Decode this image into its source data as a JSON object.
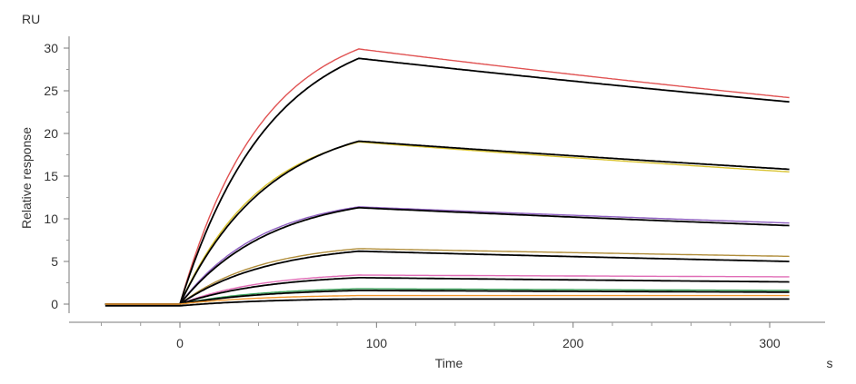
{
  "chart_data": {
    "type": "line",
    "title": "",
    "xlabel": "Time",
    "ylabel": "Relative response",
    "x_unit": "s",
    "y_unit": "RU",
    "xlim": [
      -40,
      310
    ],
    "ylim": [
      -1.2,
      31.5
    ],
    "x_ticks": [
      "0",
      "100",
      "200",
      "300"
    ],
    "y_ticks": [
      "0",
      "5",
      "10",
      "15",
      "20",
      "25",
      "30"
    ],
    "grid": false,
    "legend": "none",
    "injection_start": 0,
    "injection_end": 91,
    "series": [
      {
        "color": "#e05252",
        "role": "measured",
        "baseline": 0,
        "peak": 29.9,
        "end": 24.2,
        "x_end": 310
      },
      {
        "color": "#000000",
        "role": "fit",
        "baseline": 0,
        "peak": 28.8,
        "end": 23.7,
        "x_end": 310
      },
      {
        "color": "#d8c22e",
        "role": "measured",
        "baseline": 0,
        "peak": 19.0,
        "end": 15.5,
        "x_end": 310
      },
      {
        "color": "#000000",
        "role": "fit",
        "baseline": 0,
        "peak": 19.1,
        "end": 15.8,
        "x_end": 310
      },
      {
        "color": "#8e5fc0",
        "role": "measured",
        "baseline": 0,
        "peak": 11.4,
        "end": 9.5,
        "x_end": 310
      },
      {
        "color": "#000000",
        "role": "fit",
        "baseline": 0,
        "peak": 11.3,
        "end": 9.2,
        "x_end": 310
      },
      {
        "color": "#b08d3a",
        "role": "measured",
        "baseline": 0,
        "peak": 6.5,
        "end": 5.6,
        "x_end": 310
      },
      {
        "color": "#000000",
        "role": "fit",
        "baseline": 0,
        "peak": 6.2,
        "end": 5.0,
        "x_end": 310
      },
      {
        "color": "#e06cb6",
        "role": "measured",
        "baseline": 0,
        "peak": 3.4,
        "end": 3.2,
        "x_end": 310
      },
      {
        "color": "#000000",
        "role": "fit",
        "baseline": 0,
        "peak": 3.1,
        "end": 2.6,
        "x_end": 310
      },
      {
        "color": "#3aa05a",
        "role": "measured",
        "baseline": 0,
        "peak": 1.8,
        "end": 1.6,
        "x_end": 310
      },
      {
        "color": "#000000",
        "role": "fit",
        "baseline": 0,
        "peak": 1.6,
        "end": 1.4,
        "x_end": 310
      },
      {
        "color": "#f0962e",
        "role": "measured",
        "baseline": 0,
        "peak": 1.0,
        "end": 1.0,
        "x_end": 310
      },
      {
        "color": "#000000",
        "role": "fit",
        "baseline": -0.2,
        "peak": 0.6,
        "end": 0.6,
        "x_end": 310
      }
    ]
  }
}
